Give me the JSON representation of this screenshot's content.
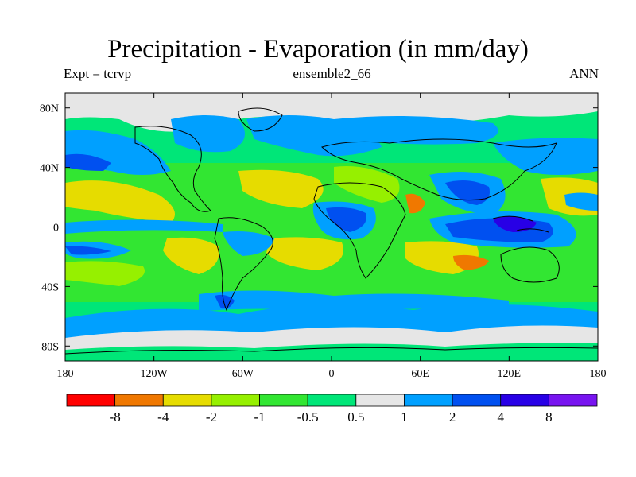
{
  "title": "Precipitation - Evaporation (in mm/day)",
  "left_label": "Expt = tcrvp",
  "center_label": "ensemble2_66",
  "right_label": "ANN",
  "map": {
    "lon_range": [
      -180,
      180
    ],
    "lat_range": [
      -90,
      90
    ],
    "lat_ticks": [
      {
        "value": 80,
        "label": "80N"
      },
      {
        "value": 40,
        "label": "40N"
      },
      {
        "value": 0,
        "label": "0"
      },
      {
        "value": -40,
        "label": "40S"
      },
      {
        "value": -80,
        "label": "80S"
      }
    ],
    "lon_ticks": [
      {
        "value": -180,
        "label": "180"
      },
      {
        "value": -120,
        "label": "120W"
      },
      {
        "value": -60,
        "label": "60W"
      },
      {
        "value": 0,
        "label": "0"
      },
      {
        "value": 60,
        "label": "60E"
      },
      {
        "value": 120,
        "label": "120E"
      },
      {
        "value": 180,
        "label": "180"
      }
    ]
  },
  "colorbar": {
    "colors": [
      "#ff0000",
      "#f07800",
      "#e6dc00",
      "#96f000",
      "#32e632",
      "#00e678",
      "#e6e6e6",
      "#00a0ff",
      "#0050f0",
      "#2800e6",
      "#7814f0"
    ],
    "labels": [
      "-8",
      "-4",
      "-2",
      "-1",
      "-0.5",
      "0.5",
      "1",
      "2",
      "4",
      "8"
    ]
  }
}
